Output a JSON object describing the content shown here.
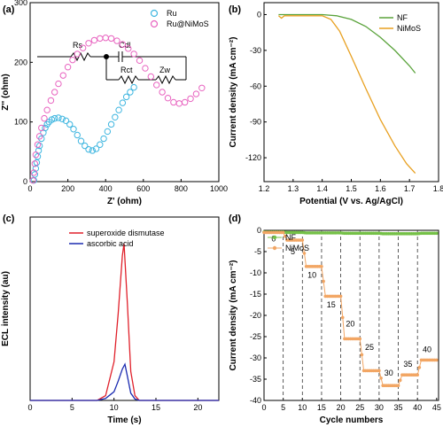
{
  "panels": {
    "a": {
      "label": "(a)"
    },
    "b": {
      "label": "(b)"
    },
    "c": {
      "label": "(c)"
    },
    "d": {
      "label": "(d)"
    }
  },
  "circuit": {
    "rs": "Rs",
    "cdl": "Cdl",
    "rct": "Rct",
    "zw": "Zw"
  },
  "colors": {
    "ru": "#3fb6e0",
    "ru_nimos": "#e864c0",
    "nf": "#5aa33b",
    "nimos": "#e8a020",
    "sod": "#e0202a",
    "aa": "#1a2ab0",
    "cycle": "#f2a664",
    "nf_d": "#74c046"
  },
  "chart_data": [
    {
      "panel": "a",
      "type": "scatter",
      "xlabel": "Z' (ohm)",
      "ylabel": "Z'' (ohm)",
      "xlim": [
        0,
        1000
      ],
      "ylim": [
        0,
        300
      ],
      "xticks": [
        0,
        200,
        400,
        600,
        800,
        1000
      ],
      "yticks": [
        0,
        100,
        200,
        300
      ],
      "legend": "top-right",
      "series": [
        {
          "name": "Ru",
          "color_key": "ru",
          "x": [
            20,
            25,
            30,
            35,
            40,
            45,
            50,
            60,
            70,
            80,
            90,
            100,
            115,
            130,
            150,
            170,
            190,
            210,
            230,
            250,
            270,
            290,
            310,
            330,
            350,
            370,
            390,
            410,
            430,
            450,
            470,
            490,
            510,
            530,
            550
          ],
          "y": [
            2,
            12,
            22,
            32,
            42,
            52,
            60,
            72,
            82,
            90,
            96,
            100,
            104,
            106,
            107,
            105,
            102,
            96,
            88,
            78,
            68,
            60,
            54,
            52,
            55,
            62,
            72,
            84,
            96,
            108,
            120,
            132,
            142,
            150,
            158
          ]
        },
        {
          "name": "Ru@NiMoS",
          "color_key": "ru_nimos",
          "x": [
            15,
            20,
            25,
            30,
            40,
            50,
            60,
            75,
            90,
            110,
            130,
            150,
            175,
            200,
            225,
            250,
            280,
            310,
            340,
            370,
            400,
            430,
            460,
            490,
            520,
            550,
            580,
            610,
            640,
            670,
            700,
            730,
            760,
            790,
            820,
            850,
            880,
            910
          ],
          "y": [
            2,
            15,
            30,
            45,
            62,
            76,
            90,
            106,
            120,
            136,
            150,
            164,
            178,
            192,
            204,
            214,
            224,
            232,
            237,
            240,
            241,
            240,
            236,
            230,
            223,
            214,
            203,
            190,
            176,
            162,
            150,
            140,
            133,
            131,
            133,
            139,
            147,
            157
          ]
        }
      ]
    },
    {
      "panel": "b",
      "type": "line",
      "xlabel": "Potential (V vs. Ag/AgCl)",
      "ylabel": "Current density (mA cm⁻²)",
      "xlim": [
        1.2,
        1.8
      ],
      "ylim": [
        -140,
        10
      ],
      "xticks": [
        1.2,
        1.3,
        1.4,
        1.5,
        1.6,
        1.7,
        1.8
      ],
      "yticks": [
        0,
        -30,
        -60,
        -90,
        -120
      ],
      "legend": "top-right",
      "series": [
        {
          "name": "NF",
          "color_key": "nf",
          "x": [
            1.25,
            1.3,
            1.35,
            1.4,
            1.45,
            1.5,
            1.55,
            1.6,
            1.65,
            1.7,
            1.72
          ],
          "y": [
            0,
            0,
            0,
            0,
            -1,
            -4,
            -10,
            -19,
            -30,
            -43,
            -49
          ]
        },
        {
          "name": "NiMoS",
          "color_key": "nimos",
          "x": [
            1.25,
            1.26,
            1.27,
            1.3,
            1.35,
            1.4,
            1.43,
            1.46,
            1.5,
            1.55,
            1.6,
            1.65,
            1.69,
            1.72
          ],
          "y": [
            -1,
            -3,
            -1,
            -1,
            -1,
            -1,
            -4,
            -14,
            -35,
            -62,
            -88,
            -110,
            -125,
            -133
          ]
        }
      ]
    },
    {
      "panel": "c",
      "type": "line",
      "xlabel": "Time (s)",
      "ylabel": "ECL intensity (au)",
      "xlim": [
        0,
        22.5
      ],
      "ylim": [
        0,
        380
      ],
      "xticks": [
        0,
        5,
        10,
        15,
        20
      ],
      "yticks": [],
      "legend": "top-right",
      "series": [
        {
          "name": "superoxide dismutase",
          "color_key": "sod",
          "x": [
            0,
            8,
            9,
            10,
            10.5,
            11,
            11.2,
            11.6,
            12,
            12.5,
            13,
            22.5
          ],
          "y": [
            0,
            0,
            10,
            80,
            180,
            300,
            325,
            200,
            60,
            10,
            0,
            0
          ]
        },
        {
          "name": "ascorbic acid",
          "color_key": "aa",
          "x": [
            0,
            8,
            9,
            10,
            10.5,
            11,
            11.3,
            11.6,
            12,
            12.5,
            13,
            22.5
          ],
          "y": [
            0,
            0,
            4,
            18,
            40,
            65,
            75,
            50,
            15,
            3,
            0,
            0
          ]
        }
      ]
    },
    {
      "panel": "d",
      "type": "scatter",
      "xlabel": "Cycle numbers",
      "ylabel": "Current density (mA cm⁻²)",
      "xlim": [
        0,
        45.5
      ],
      "ylim": [
        -40,
        0
      ],
      "xticks": [
        0,
        5,
        10,
        15,
        20,
        25,
        30,
        35,
        40,
        45
      ],
      "yticks": [
        0,
        -5,
        -10,
        -15,
        -20,
        -25,
        -30,
        -35,
        -40
      ],
      "legend": "top-left",
      "dividers": [
        5,
        10,
        15,
        20,
        25,
        30,
        35,
        40
      ],
      "annotations": [
        "0",
        "5",
        "10",
        "15",
        "20",
        "25",
        "30",
        "35",
        "40"
      ],
      "series": [
        {
          "name": "NF",
          "color_key": "nf_d",
          "steps": [
            -0.4,
            -0.5,
            -0.6,
            -0.6,
            -0.7,
            -0.7,
            -0.8,
            -0.8,
            -0.7
          ]
        },
        {
          "name": "NiMoS",
          "color_key": "cycle",
          "steps": [
            -0.5,
            -2.3,
            -8.5,
            -15.5,
            -25.5,
            -33,
            -36.5,
            -34,
            -30.5
          ]
        }
      ]
    }
  ]
}
